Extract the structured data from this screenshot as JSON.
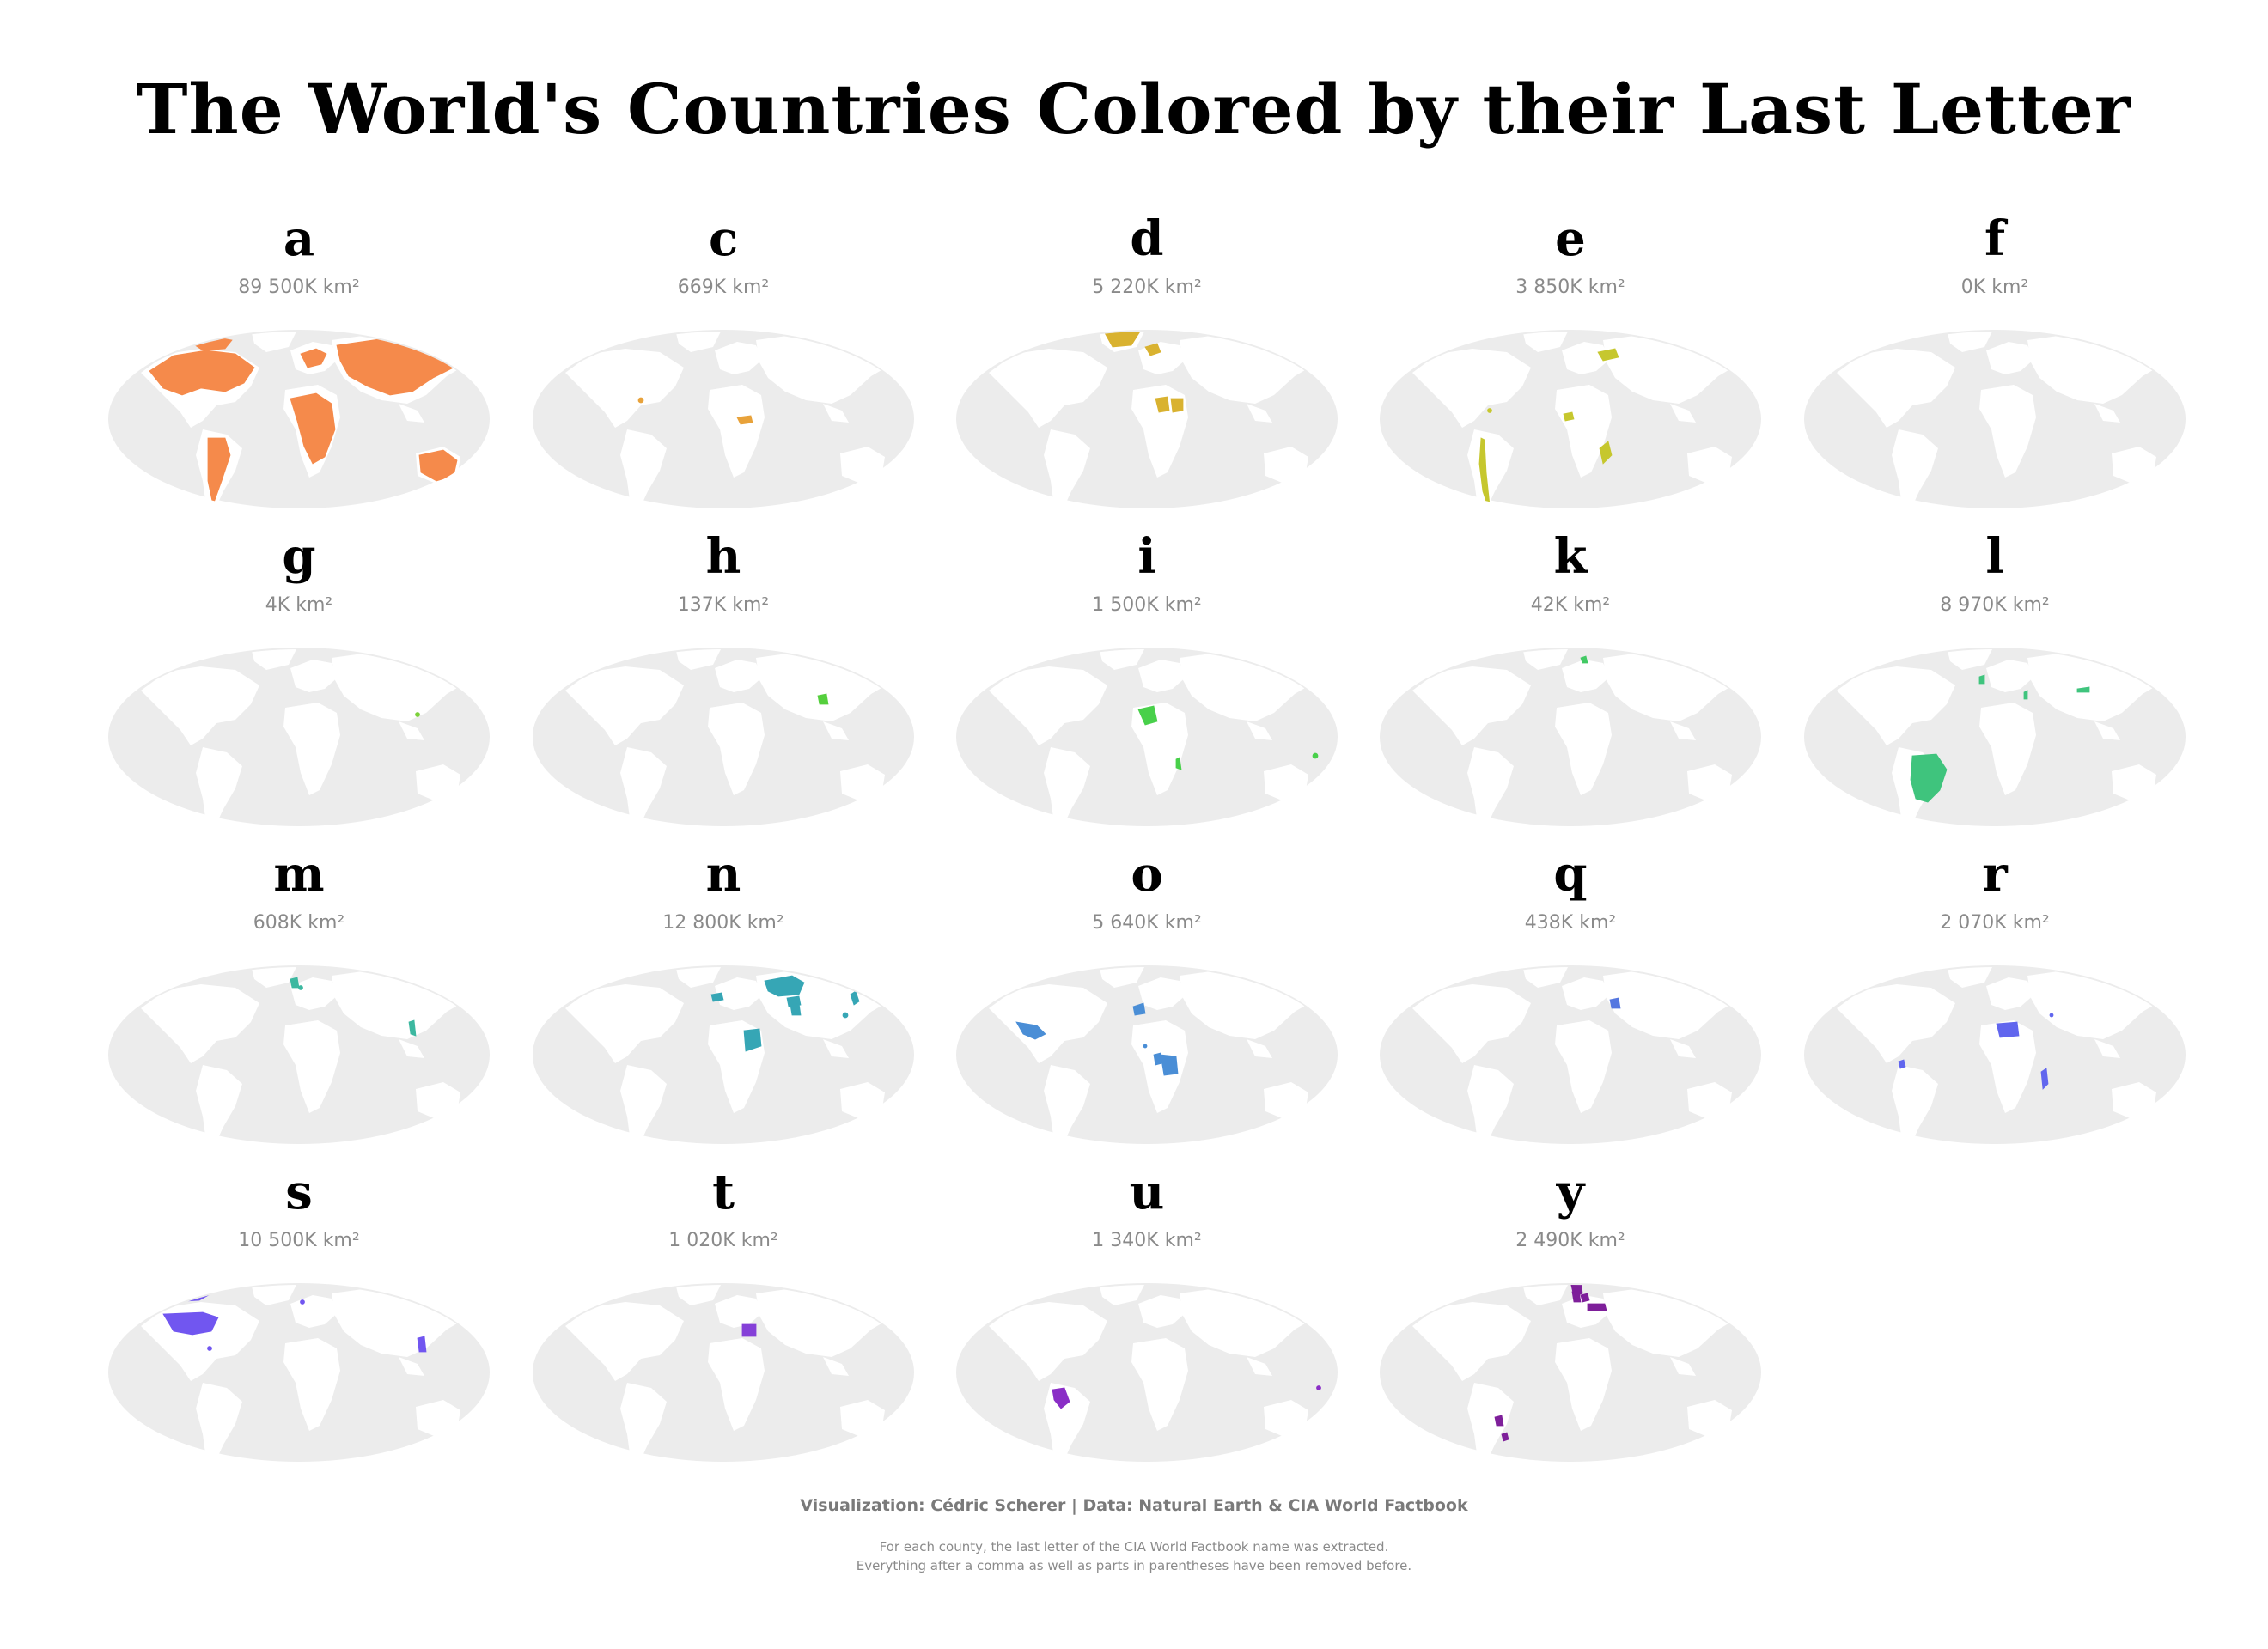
{
  "title": "The World's Countries Colored by their Last Letter",
  "colors": {
    "ocean": "#ececec",
    "land": "#ffffff"
  },
  "panels": [
    {
      "letter": "a",
      "area": "89 500K km²",
      "color": "#f58a4b",
      "regions": [
        "north-america",
        "south-america",
        "europe",
        "africa",
        "russia-asia",
        "australia",
        "antarctica",
        "canada-islands"
      ]
    },
    {
      "letter": "c",
      "area": "669K km²",
      "color": "#e8a23a",
      "regions": [
        "central-african-republic",
        "pacific-dot"
      ]
    },
    {
      "letter": "d",
      "area": "5 220K km²",
      "color": "#d9b230",
      "regions": [
        "greenland",
        "nordic",
        "chad",
        "sudan-area",
        "new-zealand"
      ]
    },
    {
      "letter": "e",
      "area": "3 850K km²",
      "color": "#c6c72e",
      "regions": [
        "chile",
        "ukraine",
        "ivory-coast",
        "mozambique",
        "caribbean-dots"
      ]
    },
    {
      "letter": "f",
      "area": "0K km²",
      "color": "#9fcf33",
      "regions": []
    },
    {
      "letter": "g",
      "area": "4K km²",
      "color": "#7cd13a",
      "regions": [
        "hong-kong-dot"
      ]
    },
    {
      "letter": "h",
      "area": "137K km²",
      "color": "#55cf3d",
      "regions": [
        "bangladesh"
      ]
    },
    {
      "letter": "i",
      "area": "1 500K km²",
      "color": "#48d04a",
      "regions": [
        "mali",
        "malawi",
        "pacific-dots"
      ]
    },
    {
      "letter": "k",
      "area": "42K km²",
      "color": "#42c964",
      "regions": [
        "denmark"
      ]
    },
    {
      "letter": "l",
      "area": "8 970K km²",
      "color": "#3fc47d",
      "regions": [
        "brazil",
        "portugal",
        "nepal",
        "israel"
      ]
    },
    {
      "letter": "m",
      "area": "608K km²",
      "color": "#3cb8a0",
      "regions": [
        "united-kingdom",
        "vietnam",
        "belgium"
      ]
    },
    {
      "letter": "n",
      "area": "12 800K km²",
      "color": "#36a6b5",
      "regions": [
        "kazakhstan",
        "sudan",
        "afghanistan",
        "japan",
        "spain",
        "pakistan",
        "taiwan"
      ]
    },
    {
      "letter": "o",
      "area": "5 640K km²",
      "color": "#4a8ed6",
      "regions": [
        "mexico",
        "morocco",
        "congo",
        "dr-congo",
        "togo"
      ]
    },
    {
      "letter": "q",
      "area": "438K km²",
      "color": "#5577e0",
      "regions": [
        "iraq"
      ]
    },
    {
      "letter": "r",
      "area": "2 070K km²",
      "color": "#6166ee",
      "regions": [
        "niger",
        "madagascar",
        "ecuador",
        "qatar"
      ]
    },
    {
      "letter": "s",
      "area": "10 500K km²",
      "color": "#7156f0",
      "regions": [
        "usa",
        "canada-islands-s",
        "netherlands",
        "philippines",
        "bahamas"
      ]
    },
    {
      "letter": "t",
      "area": "1 020K km²",
      "color": "#8540d8",
      "regions": [
        "egypt"
      ]
    },
    {
      "letter": "u",
      "area": "1 340K km²",
      "color": "#8a2ec6",
      "regions": [
        "peru",
        "tuvalu-dots"
      ]
    },
    {
      "letter": "y",
      "area": "2 490K km²",
      "color": "#7e1f9a",
      "regions": [
        "norway",
        "turkey",
        "uruguay",
        "paraguay",
        "italy",
        "germany"
      ]
    }
  ],
  "caption": "Visualization: Cédric Scherer | Data: Natural Earth & CIA World Factbook",
  "note_line1": "For each county, the last letter of the CIA World Factbook name was extracted.",
  "note_line2": "Everything after a comma as well as parts in parentheses have been removed before."
}
